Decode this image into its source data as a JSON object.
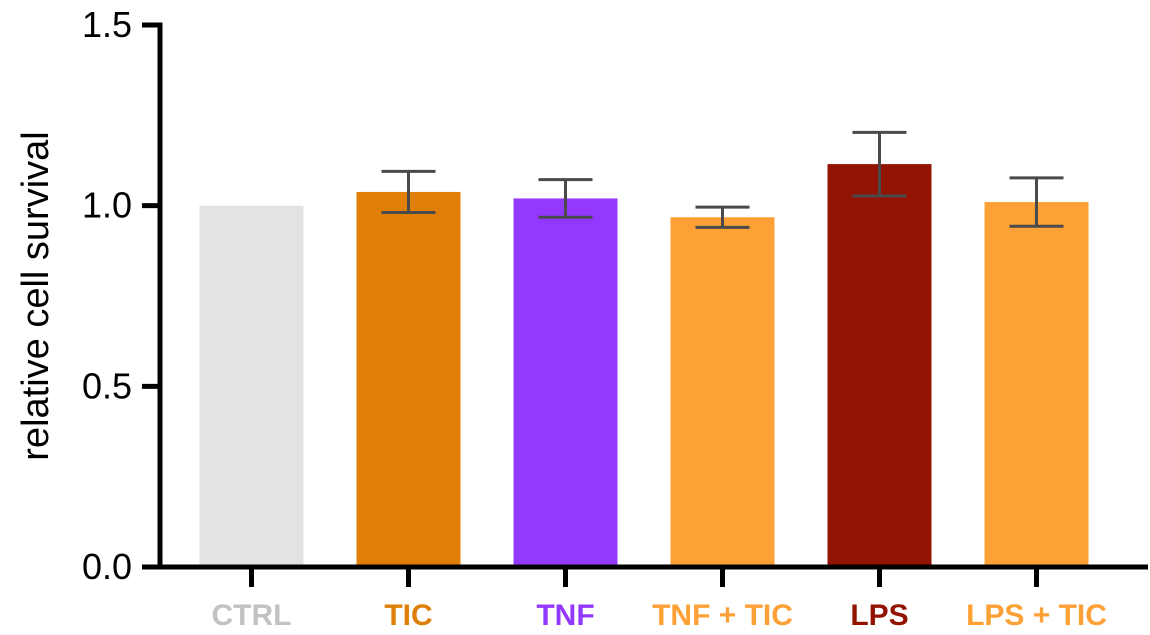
{
  "chart_data": {
    "type": "bar",
    "title": "",
    "xlabel": "",
    "ylabel": "relative cell survival",
    "ylim": [
      0,
      1.5
    ],
    "yticks": [
      "0.0",
      "0.5",
      "1.0",
      "1.5"
    ],
    "grid": false,
    "legend": "none",
    "categories": [
      "CTRL",
      "TIC",
      "TNF",
      "TNF + TIC",
      "LPS",
      "LPS + TIC"
    ],
    "values": [
      1.0,
      1.038,
      1.02,
      0.968,
      1.115,
      1.01
    ],
    "errors": [
      0,
      0.057,
      0.052,
      0.028,
      0.088,
      0.067
    ],
    "colors": [
      "#e3e3e3",
      "#df7f08",
      "#9338ff",
      "#fda036",
      "#921302",
      "#fda036"
    ],
    "label_colors": [
      "#c2c2c2",
      "#df7f08",
      "#9338ff",
      "#fda036",
      "#921302",
      "#fda036"
    ],
    "error_bar_color": "#4a4a4a",
    "axis_color": "#000000"
  }
}
